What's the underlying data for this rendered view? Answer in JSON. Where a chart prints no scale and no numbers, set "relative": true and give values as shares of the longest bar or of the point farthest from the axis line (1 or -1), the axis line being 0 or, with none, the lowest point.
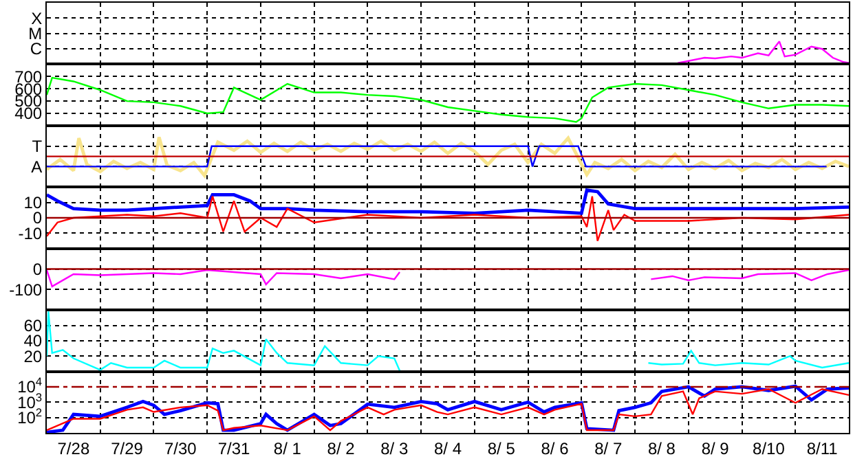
{
  "chart_data": [
    {
      "type": "line",
      "grid": true,
      "tick_labels": "y",
      "relative": true,
      "annotations": [
        "X",
        "M",
        "C"
      ],
      "xlim": [
        "--07-28T00:00",
        "--08-12T00:00"
      ],
      "xticks": [
        {
          "value": "--07-28T12:00",
          "label": "7/28"
        },
        {
          "value": "--07-29T00:00",
          "label": null
        },
        {
          "value": "--07-29T12:00",
          "label": "7/29"
        },
        {
          "value": "--07-30T00:00",
          "label": null
        },
        {
          "value": "--07-30T12:00",
          "label": "7/30"
        },
        {
          "value": "--07-31T00:00",
          "label": null
        },
        {
          "value": "--07-31T12:00",
          "label": "7/31"
        },
        {
          "value": "--08-01T00:00",
          "label": null
        },
        {
          "value": "--08-01T12:00",
          "label": "8/ 1"
        },
        {
          "value": "--08-02T00:00",
          "label": null
        },
        {
          "value": "--08-02T12:00",
          "label": "8/ 2"
        },
        {
          "value": "--08-03T00:00",
          "label": null
        },
        {
          "value": "--08-03T12:00",
          "label": "8/ 3"
        },
        {
          "value": "--08-04T00:00",
          "label": null
        },
        {
          "value": "--08-04T12:00",
          "label": "8/ 4"
        },
        {
          "value": "--08-05T00:00",
          "label": null
        },
        {
          "value": "--08-05T12:00",
          "label": "8/ 5"
        },
        {
          "value": "--08-06T00:00",
          "label": null
        },
        {
          "value": "--08-06T12:00",
          "label": "8/ 6"
        },
        {
          "value": "--08-07T00:00",
          "label": null
        },
        {
          "value": "--08-07T12:00",
          "label": "8/ 7"
        },
        {
          "value": "--08-08T00:00",
          "label": null
        },
        {
          "value": "--08-08T12:00",
          "label": "8/ 8"
        },
        {
          "value": "--08-09T00:00",
          "label": null
        },
        {
          "value": "--08-09T12:00",
          "label": "8/ 9"
        },
        {
          "value": "--08-10T00:00",
          "label": null
        },
        {
          "value": "--08-10T12:00",
          "label": "8/10"
        },
        {
          "value": "--08-11T00:00",
          "label": null
        },
        {
          "value": "--08-11T12:00",
          "label": "8/11"
        }
      ],
      "series": [
        {
          "color": "#ff00ff",
          "x": [
            "--08-08T19:12",
            "--08-09T00:00",
            "--08-09T07:12",
            "--08-09T12:00",
            "--08-09T19:12",
            "--08-10T00:00",
            "--08-10T07:12",
            "--08-10T12:00",
            "--08-10T16:48",
            "--08-10T19:12",
            "--08-11T00:00",
            "--08-11T07:12",
            "--08-11T12:00",
            "--08-11T16:48",
            "--08-11T21:36",
            "--08-12T00:00"
          ],
          "values": [
            0,
            0.09,
            0.24,
            0.21,
            0.3,
            0.24,
            0.45,
            0.35,
            1,
            0.3,
            0.38,
            0.76,
            0.65,
            0.24,
            0.04,
            0
          ]
        }
      ]
    },
    {
      "type": "line",
      "grid": true,
      "tick_labels": "y",
      "xlim": [
        "--07-28T00:00",
        "--08-12T00:00"
      ],
      "ylim": [
        300,
        800
      ],
      "yticks": [
        400,
        500,
        600,
        700
      ],
      "xticks": [
        {
          "value": "--07-28T12:00",
          "label": "7/28"
        },
        {
          "value": "--07-29T00:00",
          "label": null
        },
        {
          "value": "--07-29T12:00",
          "label": "7/29"
        },
        {
          "value": "--07-30T00:00",
          "label": null
        },
        {
          "value": "--07-30T12:00",
          "label": "7/30"
        },
        {
          "value": "--07-31T00:00",
          "label": null
        },
        {
          "value": "--07-31T12:00",
          "label": "7/31"
        },
        {
          "value": "--08-01T00:00",
          "label": null
        },
        {
          "value": "--08-01T12:00",
          "label": "8/ 1"
        },
        {
          "value": "--08-02T00:00",
          "label": null
        },
        {
          "value": "--08-02T12:00",
          "label": "8/ 2"
        },
        {
          "value": "--08-03T00:00",
          "label": null
        },
        {
          "value": "--08-03T12:00",
          "label": "8/ 3"
        },
        {
          "value": "--08-04T00:00",
          "label": null
        },
        {
          "value": "--08-04T12:00",
          "label": "8/ 4"
        },
        {
          "value": "--08-05T00:00",
          "label": null
        },
        {
          "value": "--08-05T12:00",
          "label": "8/ 5"
        },
        {
          "value": "--08-06T00:00",
          "label": null
        },
        {
          "value": "--08-06T12:00",
          "label": "8/ 6"
        },
        {
          "value": "--08-07T00:00",
          "label": null
        },
        {
          "value": "--08-07T12:00",
          "label": "8/ 7"
        },
        {
          "value": "--08-08T00:00",
          "label": null
        },
        {
          "value": "--08-08T12:00",
          "label": "8/ 8"
        },
        {
          "value": "--08-09T00:00",
          "label": null
        },
        {
          "value": "--08-09T12:00",
          "label": "8/ 9"
        },
        {
          "value": "--08-10T00:00",
          "label": null
        },
        {
          "value": "--08-10T12:00",
          "label": "8/10"
        },
        {
          "value": "--08-11T00:00",
          "label": null
        },
        {
          "value": "--08-11T12:00",
          "label": "8/11"
        }
      ],
      "series": [
        {
          "color": "#00ff00",
          "x": [
            "--07-28T00:00",
            "--07-28T02:24",
            "--07-28T12:00",
            "--07-29T00:00",
            "--07-29T12:00",
            "--07-30T00:00",
            "--07-30T12:00",
            "--07-31T00:00",
            "--07-31T07:12",
            "--07-31T12:00",
            "--08-01T00:00",
            "--08-01T12:00",
            "--08-02T00:00",
            "--08-02T12:00",
            "--08-03T00:00",
            "--08-03T12:00",
            "--08-04T00:00",
            "--08-04T12:00",
            "--08-05T00:00",
            "--08-05T12:00",
            "--08-06T00:00",
            "--08-06T12:00",
            "--08-06T21:36",
            "--08-07T00:00",
            "--08-07T04:48",
            "--08-07T12:00",
            "--08-08T00:00",
            "--08-08T12:00",
            "--08-09T00:00",
            "--08-09T12:00",
            "--08-10T00:00",
            "--08-10T12:00",
            "--08-11T00:00",
            "--08-11T12:00",
            "--08-12T00:00"
          ],
          "values": [
            550,
            690,
            660,
            590,
            500,
            490,
            460,
            400,
            410,
            610,
            510,
            640,
            570,
            570,
            550,
            540,
            510,
            450,
            420,
            390,
            370,
            360,
            330,
            360,
            530,
            610,
            640,
            630,
            590,
            550,
            490,
            440,
            470,
            470,
            460
          ]
        }
      ]
    },
    {
      "type": "line",
      "grid": true,
      "tick_labels": "y",
      "relative": true,
      "annotations": [
        "T",
        "A"
      ],
      "xlim": [
        "--07-28T00:00",
        "--08-12T00:00"
      ],
      "xticks": [
        {
          "value": "--07-28T12:00",
          "label": "7/28"
        },
        {
          "value": "--07-29T00:00",
          "label": null
        },
        {
          "value": "--07-29T12:00",
          "label": "7/29"
        },
        {
          "value": "--07-30T00:00",
          "label": null
        },
        {
          "value": "--07-30T12:00",
          "label": "7/30"
        },
        {
          "value": "--07-31T00:00",
          "label": null
        },
        {
          "value": "--07-31T12:00",
          "label": "7/31"
        },
        {
          "value": "--08-01T00:00",
          "label": null
        },
        {
          "value": "--08-01T12:00",
          "label": "8/ 1"
        },
        {
          "value": "--08-02T00:00",
          "label": null
        },
        {
          "value": "--08-02T12:00",
          "label": "8/ 2"
        },
        {
          "value": "--08-03T00:00",
          "label": null
        },
        {
          "value": "--08-03T12:00",
          "label": "8/ 3"
        },
        {
          "value": "--08-04T00:00",
          "label": null
        },
        {
          "value": "--08-04T12:00",
          "label": "8/ 4"
        },
        {
          "value": "--08-05T00:00",
          "label": null
        },
        {
          "value": "--08-05T12:00",
          "label": "8/ 5"
        },
        {
          "value": "--08-06T00:00",
          "label": null
        },
        {
          "value": "--08-06T12:00",
          "label": "8/ 6"
        },
        {
          "value": "--08-07T00:00",
          "label": null
        },
        {
          "value": "--08-07T12:00",
          "label": "8/ 7"
        },
        {
          "value": "--08-08T00:00",
          "label": null
        },
        {
          "value": "--08-08T12:00",
          "label": "8/ 8"
        },
        {
          "value": "--08-09T00:00",
          "label": null
        },
        {
          "value": "--08-09T12:00",
          "label": "8/ 9"
        },
        {
          "value": "--08-10T00:00",
          "label": null
        },
        {
          "value": "--08-10T12:00",
          "label": "8/10"
        },
        {
          "value": "--08-11T00:00",
          "label": null
        },
        {
          "value": "--08-11T12:00",
          "label": "8/11"
        }
      ],
      "ref_lines": [
        {
          "axis": "y",
          "value": 0,
          "color": "#c00000"
        }
      ],
      "series": [
        {
          "color": "#f8e48c",
          "x": [
            "--07-28T00:00",
            "--07-28T06:00",
            "--07-28T12:00",
            "--07-28T14:24",
            "--07-28T18:00",
            "--07-29T00:00",
            "--07-29T06:00",
            "--07-29T12:00",
            "--07-29T18:00",
            "--07-30T00:00",
            "--07-30T02:24",
            "--07-30T06:00",
            "--07-30T12:00",
            "--07-30T18:00",
            "--07-30T22:48",
            "--07-31T04:48",
            "--07-31T12:00",
            "--07-31T18:00",
            "--08-01T00:00",
            "--08-01T06:00",
            "--08-01T12:00",
            "--08-01T18:00",
            "--08-02T00:00",
            "--08-02T06:00",
            "--08-02T12:00",
            "--08-02T18:00",
            "--08-03T00:00",
            "--08-03T06:00",
            "--08-03T12:00",
            "--08-03T18:00",
            "--08-04T00:00",
            "--08-04T06:00",
            "--08-04T12:00",
            "--08-04T18:00",
            "--08-05T00:00",
            "--08-05T06:00",
            "--08-05T12:00",
            "--08-05T18:00",
            "--08-06T00:00",
            "--08-06T06:00",
            "--08-06T12:00",
            "--08-06T18:00",
            "--08-07T02:24",
            "--08-07T06:00",
            "--08-07T12:00",
            "--08-07T18:00",
            "--08-08T00:00",
            "--08-08T06:00",
            "--08-08T12:00",
            "--08-08T18:00",
            "--08-09T00:00",
            "--08-09T06:00",
            "--08-09T12:00",
            "--08-09T18:00",
            "--08-10T00:00",
            "--08-10T06:00",
            "--08-10T12:00",
            "--08-10T18:00",
            "--08-11T00:00",
            "--08-11T06:00",
            "--08-11T12:00",
            "--08-11T18:00",
            "--08-12T00:00"
          ],
          "values": [
            -0.68,
            -0.16,
            -0.74,
            0.95,
            -0.42,
            -0.79,
            -0.26,
            -0.63,
            -0.32,
            -0.68,
            1,
            -0.47,
            -0.74,
            -0.32,
            -1,
            0.74,
            0.32,
            0.79,
            0.21,
            0.68,
            0.26,
            0.74,
            0.32,
            0.63,
            0.26,
            0.68,
            0.37,
            0.79,
            0.32,
            0.63,
            0.26,
            0.74,
            0.16,
            0.68,
            0.26,
            -0.42,
            0.32,
            0.63,
            -0.32,
            0.63,
            0.16,
            0.95,
            -0.95,
            -0.32,
            -0.63,
            -0.16,
            -0.74,
            -0.26,
            -0.58,
            0.11,
            -0.68,
            -0.32,
            -0.63,
            -0.21,
            -0.74,
            -0.37,
            -0.58,
            -0.16,
            -0.68,
            -0.32,
            -0.63,
            -0.26,
            -0.53
          ]
        },
        {
          "color": "#0000ff",
          "x": [
            "--07-28T00:00",
            "--07-31T00:00",
            "--07-31T02:00",
            "--08-06T00:00",
            "--08-06T02:00",
            "--08-06T05:00",
            "--08-06T22:30",
            "--08-07T02:00",
            "--08-11T14:00"
          ],
          "values": [
            -0.53,
            -0.53,
            0.53,
            0.53,
            -0.53,
            0.53,
            0.53,
            -0.53,
            -0.53
          ]
        }
      ]
    },
    {
      "type": "line",
      "grid": true,
      "tick_labels": "y",
      "xlim": [
        "--07-28T00:00",
        "--08-12T00:00"
      ],
      "ylim": [
        -20,
        20
      ],
      "yticks": [
        -10,
        0,
        10
      ],
      "xticks": [
        {
          "value": "--07-28T12:00",
          "label": "7/28"
        },
        {
          "value": "--07-29T00:00",
          "label": null
        },
        {
          "value": "--07-29T12:00",
          "label": "7/29"
        },
        {
          "value": "--07-30T00:00",
          "label": null
        },
        {
          "value": "--07-30T12:00",
          "label": "7/30"
        },
        {
          "value": "--07-31T00:00",
          "label": null
        },
        {
          "value": "--07-31T12:00",
          "label": "7/31"
        },
        {
          "value": "--08-01T00:00",
          "label": null
        },
        {
          "value": "--08-01T12:00",
          "label": "8/ 1"
        },
        {
          "value": "--08-02T00:00",
          "label": null
        },
        {
          "value": "--08-02T12:00",
          "label": "8/ 2"
        },
        {
          "value": "--08-03T00:00",
          "label": null
        },
        {
          "value": "--08-03T12:00",
          "label": "8/ 3"
        },
        {
          "value": "--08-04T00:00",
          "label": null
        },
        {
          "value": "--08-04T12:00",
          "label": "8/ 4"
        },
        {
          "value": "--08-05T00:00",
          "label": null
        },
        {
          "value": "--08-05T12:00",
          "label": "8/ 5"
        },
        {
          "value": "--08-06T00:00",
          "label": null
        },
        {
          "value": "--08-06T12:00",
          "label": "8/ 6"
        },
        {
          "value": "--08-07T00:00",
          "label": null
        },
        {
          "value": "--08-07T12:00",
          "label": "8/ 7"
        },
        {
          "value": "--08-08T00:00",
          "label": null
        },
        {
          "value": "--08-08T12:00",
          "label": "8/ 8"
        },
        {
          "value": "--08-09T00:00",
          "label": null
        },
        {
          "value": "--08-09T12:00",
          "label": "8/ 9"
        },
        {
          "value": "--08-10T00:00",
          "label": null
        },
        {
          "value": "--08-10T12:00",
          "label": "8/10"
        },
        {
          "value": "--08-11T00:00",
          "label": null
        },
        {
          "value": "--08-11T12:00",
          "label": "8/11"
        }
      ],
      "ref_lines": [
        {
          "axis": "y",
          "value": 0,
          "color": "#a00000"
        }
      ],
      "series": [
        {
          "color": "#0000ff",
          "x": [
            "--07-28T00:00",
            "--07-28T04:48",
            "--07-28T12:00",
            "--07-29T00:00",
            "--07-29T12:00",
            "--07-30T00:00",
            "--07-30T12:00",
            "--07-31T00:00",
            "--07-31T02:24",
            "--07-31T12:00",
            "--07-31T19:12",
            "--08-01T00:00",
            "--08-01T12:00",
            "--08-02T00:00",
            "--08-03T00:00",
            "--08-04T00:00",
            "--08-05T00:00",
            "--08-06T00:00",
            "--08-07T00:00",
            "--08-07T02:24",
            "--08-07T07:12",
            "--08-07T12:00",
            "--08-08T00:00",
            "--08-09T00:00",
            "--08-10T00:00",
            "--08-11T00:00",
            "--08-12T00:00"
          ],
          "values": [
            15,
            11,
            6,
            5,
            5,
            6,
            7,
            8,
            15,
            15,
            11,
            6,
            6,
            5,
            4,
            4,
            3,
            5,
            3,
            18,
            17,
            9,
            6,
            6,
            6,
            6,
            7
          ]
        },
        {
          "color": "#ff0000",
          "x": [
            "--07-28T00:00",
            "--07-28T04:48",
            "--07-28T12:00",
            "--07-29T00:00",
            "--07-29T12:00",
            "--07-30T00:00",
            "--07-30T12:00",
            "--07-31T00:00",
            "--07-31T02:24",
            "--07-31T07:12",
            "--07-31T12:00",
            "--07-31T16:48",
            "--08-01T00:00",
            "--08-01T07:12",
            "--08-01T12:00",
            "--08-02T00:00",
            "--08-03T00:00",
            "--08-04T00:00",
            "--08-05T00:00",
            "--08-06T00:00",
            "--08-07T00:00",
            "--08-07T02:24",
            "--08-07T04:48",
            "--08-07T07:12",
            "--08-07T12:00",
            "--08-07T14:24",
            "--08-07T19:12",
            "--08-08T00:00",
            "--08-09T00:00",
            "--08-10T00:00",
            "--08-11T00:00",
            "--08-12T00:00"
          ],
          "values": [
            -12,
            -3,
            0,
            1,
            2,
            1,
            3,
            0,
            14,
            -9,
            11,
            -9,
            0,
            -6,
            6,
            -3,
            2,
            0,
            2,
            0,
            1,
            -6,
            14,
            -15,
            5,
            -8,
            2,
            -2,
            -2,
            0,
            -1,
            2
          ]
        }
      ]
    },
    {
      "type": "line",
      "grid": true,
      "tick_labels": "y",
      "xlim": [
        "--07-28T00:00",
        "--08-12T00:00"
      ],
      "ylim": [
        -200,
        100
      ],
      "yticks": [
        -100,
        0
      ],
      "xticks": [
        {
          "value": "--07-28T12:00",
          "label": "7/28"
        },
        {
          "value": "--07-29T00:00",
          "label": null
        },
        {
          "value": "--07-29T12:00",
          "label": "7/29"
        },
        {
          "value": "--07-30T00:00",
          "label": null
        },
        {
          "value": "--07-30T12:00",
          "label": "7/30"
        },
        {
          "value": "--07-31T00:00",
          "label": null
        },
        {
          "value": "--07-31T12:00",
          "label": "7/31"
        },
        {
          "value": "--08-01T00:00",
          "label": null
        },
        {
          "value": "--08-01T12:00",
          "label": "8/ 1"
        },
        {
          "value": "--08-02T00:00",
          "label": null
        },
        {
          "value": "--08-02T12:00",
          "label": "8/ 2"
        },
        {
          "value": "--08-03T00:00",
          "label": null
        },
        {
          "value": "--08-03T12:00",
          "label": "8/ 3"
        },
        {
          "value": "--08-04T00:00",
          "label": null
        },
        {
          "value": "--08-04T12:00",
          "label": "8/ 4"
        },
        {
          "value": "--08-05T00:00",
          "label": null
        },
        {
          "value": "--08-05T12:00",
          "label": "8/ 5"
        },
        {
          "value": "--08-06T00:00",
          "label": null
        },
        {
          "value": "--08-06T12:00",
          "label": "8/ 6"
        },
        {
          "value": "--08-07T00:00",
          "label": null
        },
        {
          "value": "--08-07T12:00",
          "label": "8/ 7"
        },
        {
          "value": "--08-08T00:00",
          "label": null
        },
        {
          "value": "--08-08T12:00",
          "label": "8/ 8"
        },
        {
          "value": "--08-09T00:00",
          "label": null
        },
        {
          "value": "--08-09T12:00",
          "label": "8/ 9"
        },
        {
          "value": "--08-10T00:00",
          "label": null
        },
        {
          "value": "--08-10T12:00",
          "label": "8/10"
        },
        {
          "value": "--08-11T00:00",
          "label": null
        },
        {
          "value": "--08-11T12:00",
          "label": "8/11"
        }
      ],
      "ref_lines": [
        {
          "axis": "y",
          "value": 0,
          "color": "#a00000"
        }
      ],
      "series": [
        {
          "color": "#ff00ff",
          "x": [
            "--07-28T00:00",
            "--07-28T02:24",
            "--07-28T07:12",
            "--07-28T12:00",
            "--07-29T00:00",
            "--07-29T12:00",
            "--07-30T00:00",
            "--07-30T12:00",
            "--07-31T00:00",
            "--07-31T12:00",
            "--08-01T00:00",
            "--08-01T02:24",
            "--08-01T07:12",
            "--08-02T00:00",
            "--08-02T12:00",
            "--08-03T00:00",
            "--08-03T12:00",
            "--08-03T14:24",
            "--08-06T00:00",
            "--08-08T07:12",
            "--08-08T16:48",
            "--08-09T00:00",
            "--08-09T07:12",
            "--08-10T00:00",
            "--08-10T07:12",
            "--08-11T00:00",
            "--08-11T07:12",
            "--08-11T14:24",
            "--08-12T00:00"
          ],
          "values": [
            -5,
            -85,
            -55,
            -25,
            -30,
            -25,
            -20,
            -25,
            -5,
            -15,
            -25,
            -75,
            -20,
            -25,
            -45,
            -25,
            -50,
            -15,
            null,
            -50,
            -35,
            -55,
            -40,
            -45,
            -25,
            -20,
            -55,
            -25,
            -5
          ]
        }
      ]
    },
    {
      "type": "line",
      "grid": true,
      "tick_labels": "y",
      "xlim": [
        "--07-28T00:00",
        "--08-12T00:00"
      ],
      "ylim": [
        0,
        80
      ],
      "yticks": [
        20,
        40,
        60
      ],
      "xticks": [
        {
          "value": "--07-28T12:00",
          "label": "7/28"
        },
        {
          "value": "--07-29T00:00",
          "label": null
        },
        {
          "value": "--07-29T12:00",
          "label": "7/29"
        },
        {
          "value": "--07-30T00:00",
          "label": null
        },
        {
          "value": "--07-30T12:00",
          "label": "7/30"
        },
        {
          "value": "--07-31T00:00",
          "label": null
        },
        {
          "value": "--07-31T12:00",
          "label": "7/31"
        },
        {
          "value": "--08-01T00:00",
          "label": null
        },
        {
          "value": "--08-01T12:00",
          "label": "8/ 1"
        },
        {
          "value": "--08-02T00:00",
          "label": null
        },
        {
          "value": "--08-02T12:00",
          "label": "8/ 2"
        },
        {
          "value": "--08-03T00:00",
          "label": null
        },
        {
          "value": "--08-03T12:00",
          "label": "8/ 3"
        },
        {
          "value": "--08-04T00:00",
          "label": null
        },
        {
          "value": "--08-04T12:00",
          "label": "8/ 4"
        },
        {
          "value": "--08-05T00:00",
          "label": null
        },
        {
          "value": "--08-05T12:00",
          "label": "8/ 5"
        },
        {
          "value": "--08-06T00:00",
          "label": null
        },
        {
          "value": "--08-06T12:00",
          "label": "8/ 6"
        },
        {
          "value": "--08-07T00:00",
          "label": null
        },
        {
          "value": "--08-07T12:00",
          "label": "8/ 7"
        },
        {
          "value": "--08-08T00:00",
          "label": null
        },
        {
          "value": "--08-08T12:00",
          "label": "8/ 8"
        },
        {
          "value": "--08-09T00:00",
          "label": null
        },
        {
          "value": "--08-09T12:00",
          "label": "8/ 9"
        },
        {
          "value": "--08-10T00:00",
          "label": null
        },
        {
          "value": "--08-10T12:00",
          "label": "8/10"
        },
        {
          "value": "--08-11T00:00",
          "label": null
        },
        {
          "value": "--08-11T12:00",
          "label": "8/11"
        }
      ],
      "series": [
        {
          "color": "#00ffff",
          "x": [
            "--07-28T00:00",
            "--07-28T00:43",
            "--07-28T02:24",
            "--07-28T07:12",
            "--07-28T12:00",
            "--07-29T00:00",
            "--07-29T04:48",
            "--07-29T12:00",
            "--07-30T00:00",
            "--07-30T04:48",
            "--07-30T12:00",
            "--07-31T00:00",
            "--07-31T02:24",
            "--07-31T07:12",
            "--07-31T12:00",
            "--08-01T00:00",
            "--08-01T02:24",
            "--08-01T07:12",
            "--08-01T12:00",
            "--08-02T00:00",
            "--08-02T04:48",
            "--08-02T12:00",
            "--08-03T00:00",
            "--08-03T04:48",
            "--08-03T12:00",
            "--08-03T14:24",
            "--08-06T00:00",
            "--08-08T06:00",
            "--08-08T12:00",
            "--08-08T21:36",
            "--08-09T01:12",
            "--08-09T04:48",
            "--08-09T12:00",
            "--08-10T00:00",
            "--08-10T12:00",
            "--08-10T21:36",
            "--08-11T00:00",
            "--08-11T12:00",
            "--08-12T00:00"
          ],
          "values": [
            20,
            78,
            24,
            28,
            17,
            2,
            11,
            5,
            5,
            14,
            5,
            5,
            30,
            24,
            27,
            8,
            42,
            24,
            11,
            8,
            33,
            11,
            8,
            20,
            17,
            1,
            null,
            11,
            9,
            10,
            27,
            11,
            8,
            11,
            9,
            20,
            14,
            5,
            11
          ]
        }
      ]
    },
    {
      "type": "line",
      "grid": true,
      "log": true,
      "xlim": [
        "--07-28T00:00",
        "--08-12T00:00"
      ],
      "ylim": [
        10,
        100000
      ],
      "yticks": [
        {
          "value": 100,
          "label": "10$^{2}$"
        },
        {
          "value": 1000,
          "label": "10$^{3}$"
        },
        {
          "value": 10000,
          "label": "10$^{4}$"
        }
      ],
      "xticks": [
        {
          "value": "--07-28T12:00",
          "label": "7/28"
        },
        {
          "value": "--07-29T00:00",
          "label": null
        },
        {
          "value": "--07-29T12:00",
          "label": "7/29"
        },
        {
          "value": "--07-30T00:00",
          "label": null
        },
        {
          "value": "--07-30T12:00",
          "label": "7/30"
        },
        {
          "value": "--07-31T00:00",
          "label": null
        },
        {
          "value": "--07-31T12:00",
          "label": "7/31"
        },
        {
          "value": "--08-01T00:00",
          "label": null
        },
        {
          "value": "--08-01T12:00",
          "label": "8/ 1"
        },
        {
          "value": "--08-02T00:00",
          "label": null
        },
        {
          "value": "--08-02T12:00",
          "label": "8/ 2"
        },
        {
          "value": "--08-03T00:00",
          "label": null
        },
        {
          "value": "--08-03T12:00",
          "label": "8/ 3"
        },
        {
          "value": "--08-04T00:00",
          "label": null
        },
        {
          "value": "--08-04T12:00",
          "label": "8/ 4"
        },
        {
          "value": "--08-05T00:00",
          "label": null
        },
        {
          "value": "--08-05T12:00",
          "label": "8/ 5"
        },
        {
          "value": "--08-06T00:00",
          "label": null
        },
        {
          "value": "--08-06T12:00",
          "label": "8/ 6"
        },
        {
          "value": "--08-07T00:00",
          "label": null
        },
        {
          "value": "--08-07T12:00",
          "label": "8/ 7"
        },
        {
          "value": "--08-08T00:00",
          "label": null
        },
        {
          "value": "--08-08T12:00",
          "label": "8/ 8"
        },
        {
          "value": "--08-09T00:00",
          "label": null
        },
        {
          "value": "--08-09T12:00",
          "label": "8/ 9"
        },
        {
          "value": "--08-10T00:00",
          "label": null
        },
        {
          "value": "--08-10T12:00",
          "label": "8/10"
        },
        {
          "value": "--08-11T00:00",
          "label": null
        },
        {
          "value": "--08-11T12:00",
          "label": "8/11"
        }
      ],
      "ref_lines": [
        {
          "axis": "y",
          "value": 10000,
          "color": "#a00000",
          "line_style": "dashdot"
        }
      ],
      "series": [
        {
          "color": "#0000ff",
          "x": [
            "--07-28T00:00",
            "--07-28T07:12",
            "--07-28T12:00",
            "--07-29T00:00",
            "--07-29T12:00",
            "--07-29T19:12",
            "--07-30T00:00",
            "--07-30T04:48",
            "--07-30T12:00",
            "--07-31T00:00",
            "--07-31T04:48",
            "--07-31T07:12",
            "--07-31T12:00",
            "--08-01T00:00",
            "--08-01T02:24",
            "--08-01T07:12",
            "--08-01T12:00",
            "--08-02T00:00",
            "--08-02T07:12",
            "--08-02T12:00",
            "--08-03T00:00",
            "--08-03T12:00",
            "--08-04T00:00",
            "--08-04T07:12",
            "--08-04T12:00",
            "--08-05T00:00",
            "--08-05T12:00",
            "--08-06T00:00",
            "--08-06T07:12",
            "--08-06T12:00",
            "--08-07T00:00",
            "--08-07T02:24",
            "--08-07T14:24",
            "--08-07T16:48",
            "--08-08T00:00",
            "--08-08T07:12",
            "--08-08T12:00",
            "--08-09T00:00",
            "--08-09T07:12",
            "--08-09T12:00",
            "--08-10T00:00",
            "--08-10T12:00",
            "--08-11T00:00",
            "--08-11T07:12",
            "--08-11T14:24",
            "--08-12T00:00"
          ],
          "values": [
            11,
            15,
            160,
            120,
            460,
            1100,
            630,
            160,
            280,
            910,
            790,
            15,
            15,
            40,
            160,
            40,
            15,
            160,
            30,
            40,
            740,
            460,
            1100,
            790,
            320,
            1100,
            320,
            1000,
            230,
            460,
            910,
            19,
            15,
            280,
            460,
            910,
            5000,
            10000,
            2500,
            7100,
            10000,
            5800,
            11000,
            1400,
            7100,
            8500
          ]
        },
        {
          "color": "#ff0000",
          "x": [
            "--07-28T00:00",
            "--07-28T12:00",
            "--07-29T00:00",
            "--07-29T12:00",
            "--07-29T19:12",
            "--07-30T00:00",
            "--07-30T12:00",
            "--07-31T00:00",
            "--07-31T04:48",
            "--07-31T07:12",
            "--07-31T12:00",
            "--08-01T00:00",
            "--08-01T12:00",
            "--08-02T00:00",
            "--08-02T07:12",
            "--08-02T12:00",
            "--08-03T00:00",
            "--08-03T07:12",
            "--08-03T12:00",
            "--08-04T00:00",
            "--08-04T07:12",
            "--08-04T12:00",
            "--08-05T00:00",
            "--08-05T12:00",
            "--08-06T00:00",
            "--08-06T07:12",
            "--08-06T12:00",
            "--08-07T00:00",
            "--08-07T02:24",
            "--08-07T14:24",
            "--08-07T16:48",
            "--08-08T00:00",
            "--08-08T07:12",
            "--08-08T12:00",
            "--08-08T21:36",
            "--08-09T01:55",
            "--08-09T04:48",
            "--08-09T12:00",
            "--08-10T00:00",
            "--08-10T12:00",
            "--08-11T00:00",
            "--08-11T12:00",
            "--08-12T00:00"
          ],
          "values": [
            15,
            83,
            83,
            320,
            460,
            230,
            460,
            630,
            280,
            15,
            21,
            30,
            15,
            120,
            15,
            60,
            460,
            160,
            320,
            630,
            230,
            160,
            460,
            160,
            460,
            160,
            320,
            790,
            15,
            15,
            160,
            120,
            160,
            2500,
            5000,
            160,
            1800,
            5000,
            3500,
            7100,
            910,
            7100,
            2900
          ]
        }
      ]
    }
  ]
}
